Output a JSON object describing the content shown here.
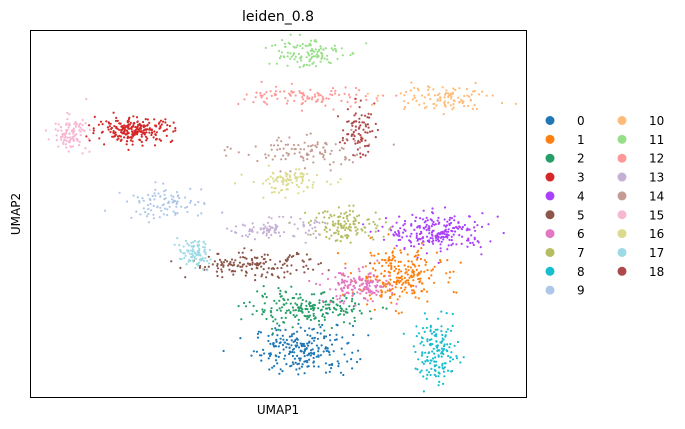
{
  "chart_data": {
    "type": "scatter",
    "title": "leiden_0.8",
    "xlabel": "UMAP1",
    "ylabel": "UMAP2",
    "xlim": [
      0,
      100
    ],
    "ylim": [
      0,
      100
    ],
    "ticks": "none",
    "grid": false,
    "legend_position": "right, outside plot, two columns",
    "legend": [
      {
        "label": "0",
        "color": "#1f77b4"
      },
      {
        "label": "1",
        "color": "#ff7f0e"
      },
      {
        "label": "2",
        "color": "#279e68"
      },
      {
        "label": "3",
        "color": "#d62728"
      },
      {
        "label": "4",
        "color": "#aa40fc"
      },
      {
        "label": "5",
        "color": "#8c564b"
      },
      {
        "label": "6",
        "color": "#e377c2"
      },
      {
        "label": "7",
        "color": "#b5bd61"
      },
      {
        "label": "8",
        "color": "#17becf"
      },
      {
        "label": "9",
        "color": "#aec7e8"
      },
      {
        "label": "10",
        "color": "#ffbb78"
      },
      {
        "label": "11",
        "color": "#98df8a"
      },
      {
        "label": "12",
        "color": "#ff9896"
      },
      {
        "label": "13",
        "color": "#c5b0d5"
      },
      {
        "label": "14",
        "color": "#c49c94"
      },
      {
        "label": "15",
        "color": "#f7b6d2"
      },
      {
        "label": "16",
        "color": "#dbdb8d"
      },
      {
        "label": "17",
        "color": "#9edae5"
      },
      {
        "label": "18",
        "color": "#ad494a"
      }
    ],
    "clusters": [
      {
        "id": "0",
        "center": [
          55,
          13
        ],
        "spread": [
          9,
          6
        ],
        "density": 0.9
      },
      {
        "id": "1",
        "center": [
          74,
          33
        ],
        "spread": [
          8,
          7
        ],
        "density": 0.9
      },
      {
        "id": "2",
        "center": [
          56,
          24
        ],
        "spread": [
          11,
          4
        ],
        "density": 0.8
      },
      {
        "id": "3",
        "center": [
          21,
          73
        ],
        "spread": [
          7,
          3
        ],
        "density": 0.9
      },
      {
        "id": "4",
        "center": [
          82,
          45
        ],
        "spread": [
          9,
          4.5
        ],
        "density": 0.9
      },
      {
        "id": "5",
        "center": [
          45,
          36
        ],
        "spread": [
          12,
          3
        ],
        "density": 0.6
      },
      {
        "id": "6",
        "center": [
          66,
          30
        ],
        "spread": [
          6,
          4
        ],
        "density": 0.6
      },
      {
        "id": "7",
        "center": [
          64,
          47
        ],
        "spread": [
          7,
          4
        ],
        "density": 0.5
      },
      {
        "id": "8",
        "center": [
          82,
          12
        ],
        "spread": [
          4,
          8
        ],
        "density": 0.6
      },
      {
        "id": "9",
        "center": [
          27,
          53
        ],
        "spread": [
          7,
          4
        ],
        "density": 0.35
      },
      {
        "id": "10",
        "center": [
          83,
          82
        ],
        "spread": [
          10,
          3
        ],
        "density": 0.4
      },
      {
        "id": "11",
        "center": [
          55,
          94
        ],
        "spread": [
          7,
          4
        ],
        "density": 0.45
      },
      {
        "id": "12",
        "center": [
          57,
          82
        ],
        "spread": [
          12,
          2.5
        ],
        "density": 0.4
      },
      {
        "id": "13",
        "center": [
          49,
          46
        ],
        "spread": [
          8,
          2.5
        ],
        "density": 0.35
      },
      {
        "id": "14",
        "center": [
          55,
          67
        ],
        "spread": [
          12,
          4
        ],
        "density": 0.4
      },
      {
        "id": "15",
        "center": [
          8,
          72
        ],
        "spread": [
          3,
          4
        ],
        "density": 0.4
      },
      {
        "id": "16",
        "center": [
          52,
          59
        ],
        "spread": [
          7,
          3
        ],
        "density": 0.35
      },
      {
        "id": "17",
        "center": [
          33,
          39
        ],
        "spread": [
          3,
          3.5
        ],
        "density": 0.35
      },
      {
        "id": "18",
        "center": [
          66,
          73
        ],
        "spread": [
          3,
          6
        ],
        "density": 0.3
      }
    ]
  }
}
